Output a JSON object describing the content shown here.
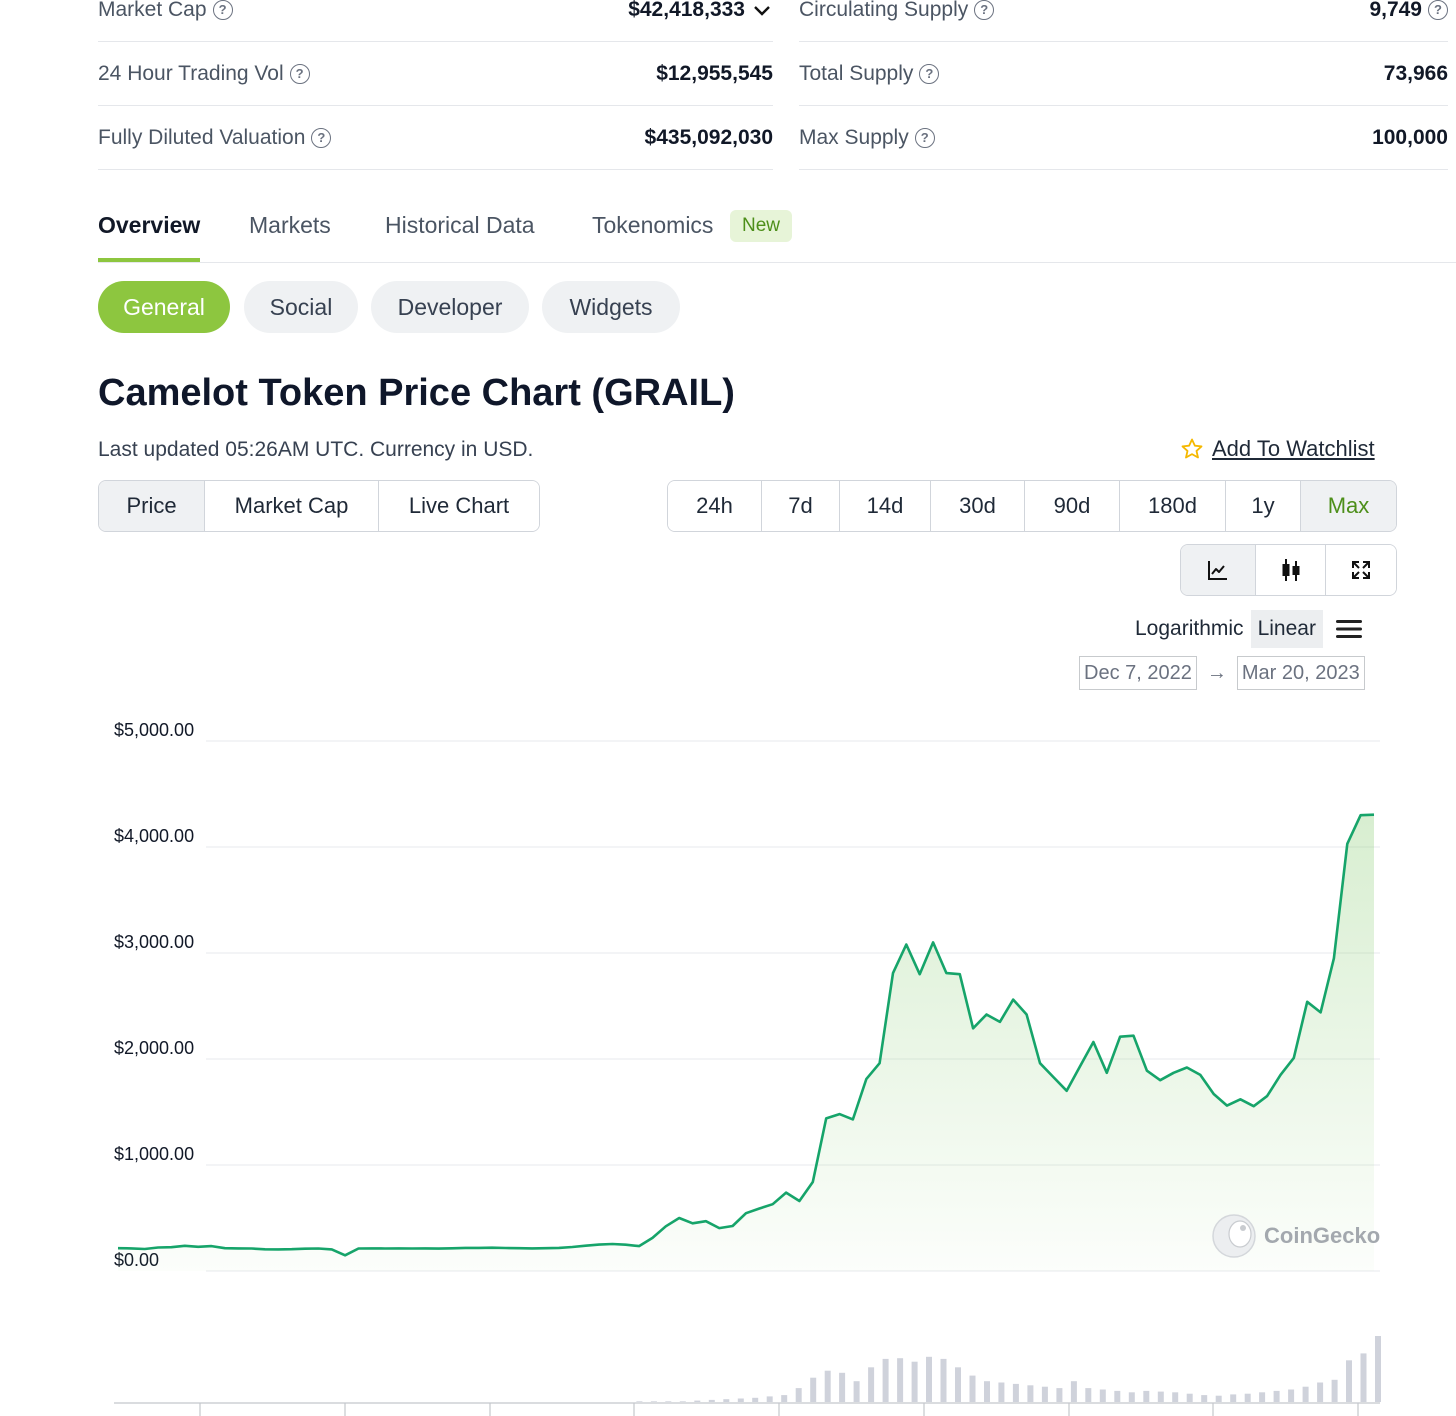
{
  "stats": {
    "left": [
      {
        "label": "Market Cap",
        "value": "$42,418,333",
        "has_chevron": true
      },
      {
        "label": "24 Hour Trading Vol",
        "value": "$12,955,545"
      },
      {
        "label": "Fully Diluted Valuation",
        "value": "$435,092,030"
      }
    ],
    "right": [
      {
        "label": "Circulating Supply",
        "value": "9,749",
        "value_help": true
      },
      {
        "label": "Total Supply",
        "value": "73,966"
      },
      {
        "label": "Max Supply",
        "value": "100,000"
      }
    ]
  },
  "tabs": [
    {
      "label": "Overview",
      "active": true
    },
    {
      "label": "Markets"
    },
    {
      "label": "Historical Data"
    },
    {
      "label": "Tokenomics"
    }
  ],
  "tab_badge": "New",
  "subtabs": [
    "General",
    "Social",
    "Developer",
    "Widgets"
  ],
  "chart_header": {
    "title": "Camelot Token Price Chart (GRAIL)",
    "updated": "Last updated 05:26AM UTC. Currency in USD.",
    "watchlist": "Add To Watchlist"
  },
  "metric_buttons": [
    "Price",
    "Market Cap",
    "Live Chart"
  ],
  "range_buttons": [
    "24h",
    "7d",
    "14d",
    "30d",
    "90d",
    "180d",
    "1y",
    "Max"
  ],
  "view_icons": [
    "line-chart-icon",
    "candlestick-icon",
    "expand-icon"
  ],
  "scale": {
    "logarithmic": "Logarithmic",
    "linear": "Linear"
  },
  "date_range": {
    "from": "Dec 7, 2022",
    "to": "Mar 20, 2023",
    "arrow": "→"
  },
  "watermark": "CoinGecko",
  "colors": {
    "accent": "#8dc63f",
    "line": "#16a46a",
    "volume": "#cfd2db"
  },
  "chart_data": {
    "type": "area",
    "title": "",
    "xlabel": "",
    "ylabel": "",
    "ylim": [
      0,
      5000
    ],
    "yticks": [
      "$5,000.00",
      "$4,000.00",
      "$3,000.00",
      "$2,000.00",
      "$1,000.00",
      "$0.00"
    ],
    "ytick_values": [
      5000,
      4000,
      3000,
      2000,
      1000,
      0
    ],
    "grid": true,
    "series": [
      {
        "values": [
          215,
          213,
          208,
          222,
          225,
          238,
          228,
          235,
          215,
          213,
          212,
          205,
          204,
          206,
          210,
          212,
          204,
          148,
          212,
          213,
          212,
          213,
          212,
          213,
          211,
          214,
          218,
          218,
          220,
          217,
          215,
          213,
          215,
          218,
          226,
          239,
          249,
          255,
          248,
          235,
          312,
          422,
          500,
          450,
          470,
          405,
          425,
          545,
          590,
          630,
          740,
          660,
          840,
          1440,
          1480,
          1430,
          1810,
          1960,
          2810,
          3080,
          2800,
          3100,
          2810,
          2800,
          2290,
          2420,
          2350,
          2560,
          2420,
          1960,
          1830,
          1700,
          1930,
          2160,
          1870,
          2210,
          2220,
          1890,
          1800,
          1870,
          1920,
          1850,
          1670,
          1560,
          1620,
          1555,
          1650,
          1850,
          2010,
          2540,
          2440,
          2950,
          4030,
          4300,
          4305
        ]
      }
    ],
    "volume": [
      0,
      0,
      0,
      0,
      0,
      0,
      0,
      0,
      0,
      0,
      0,
      0,
      0,
      0,
      0,
      0,
      0,
      0,
      0,
      0,
      0,
      0,
      0,
      0,
      0,
      0,
      0,
      0,
      0,
      0,
      0,
      0,
      0,
      0,
      0,
      0,
      1,
      1,
      1,
      1,
      2,
      3,
      4,
      5,
      6,
      8,
      10,
      20,
      35,
      45,
      42,
      30,
      50,
      62,
      63,
      58,
      65,
      62,
      50,
      38,
      30,
      28,
      26,
      24,
      22,
      20,
      30,
      20,
      18,
      16,
      14,
      16,
      15,
      14,
      12,
      10,
      9,
      11,
      12,
      14,
      16,
      18,
      22,
      28,
      32,
      60,
      70,
      95
    ]
  }
}
